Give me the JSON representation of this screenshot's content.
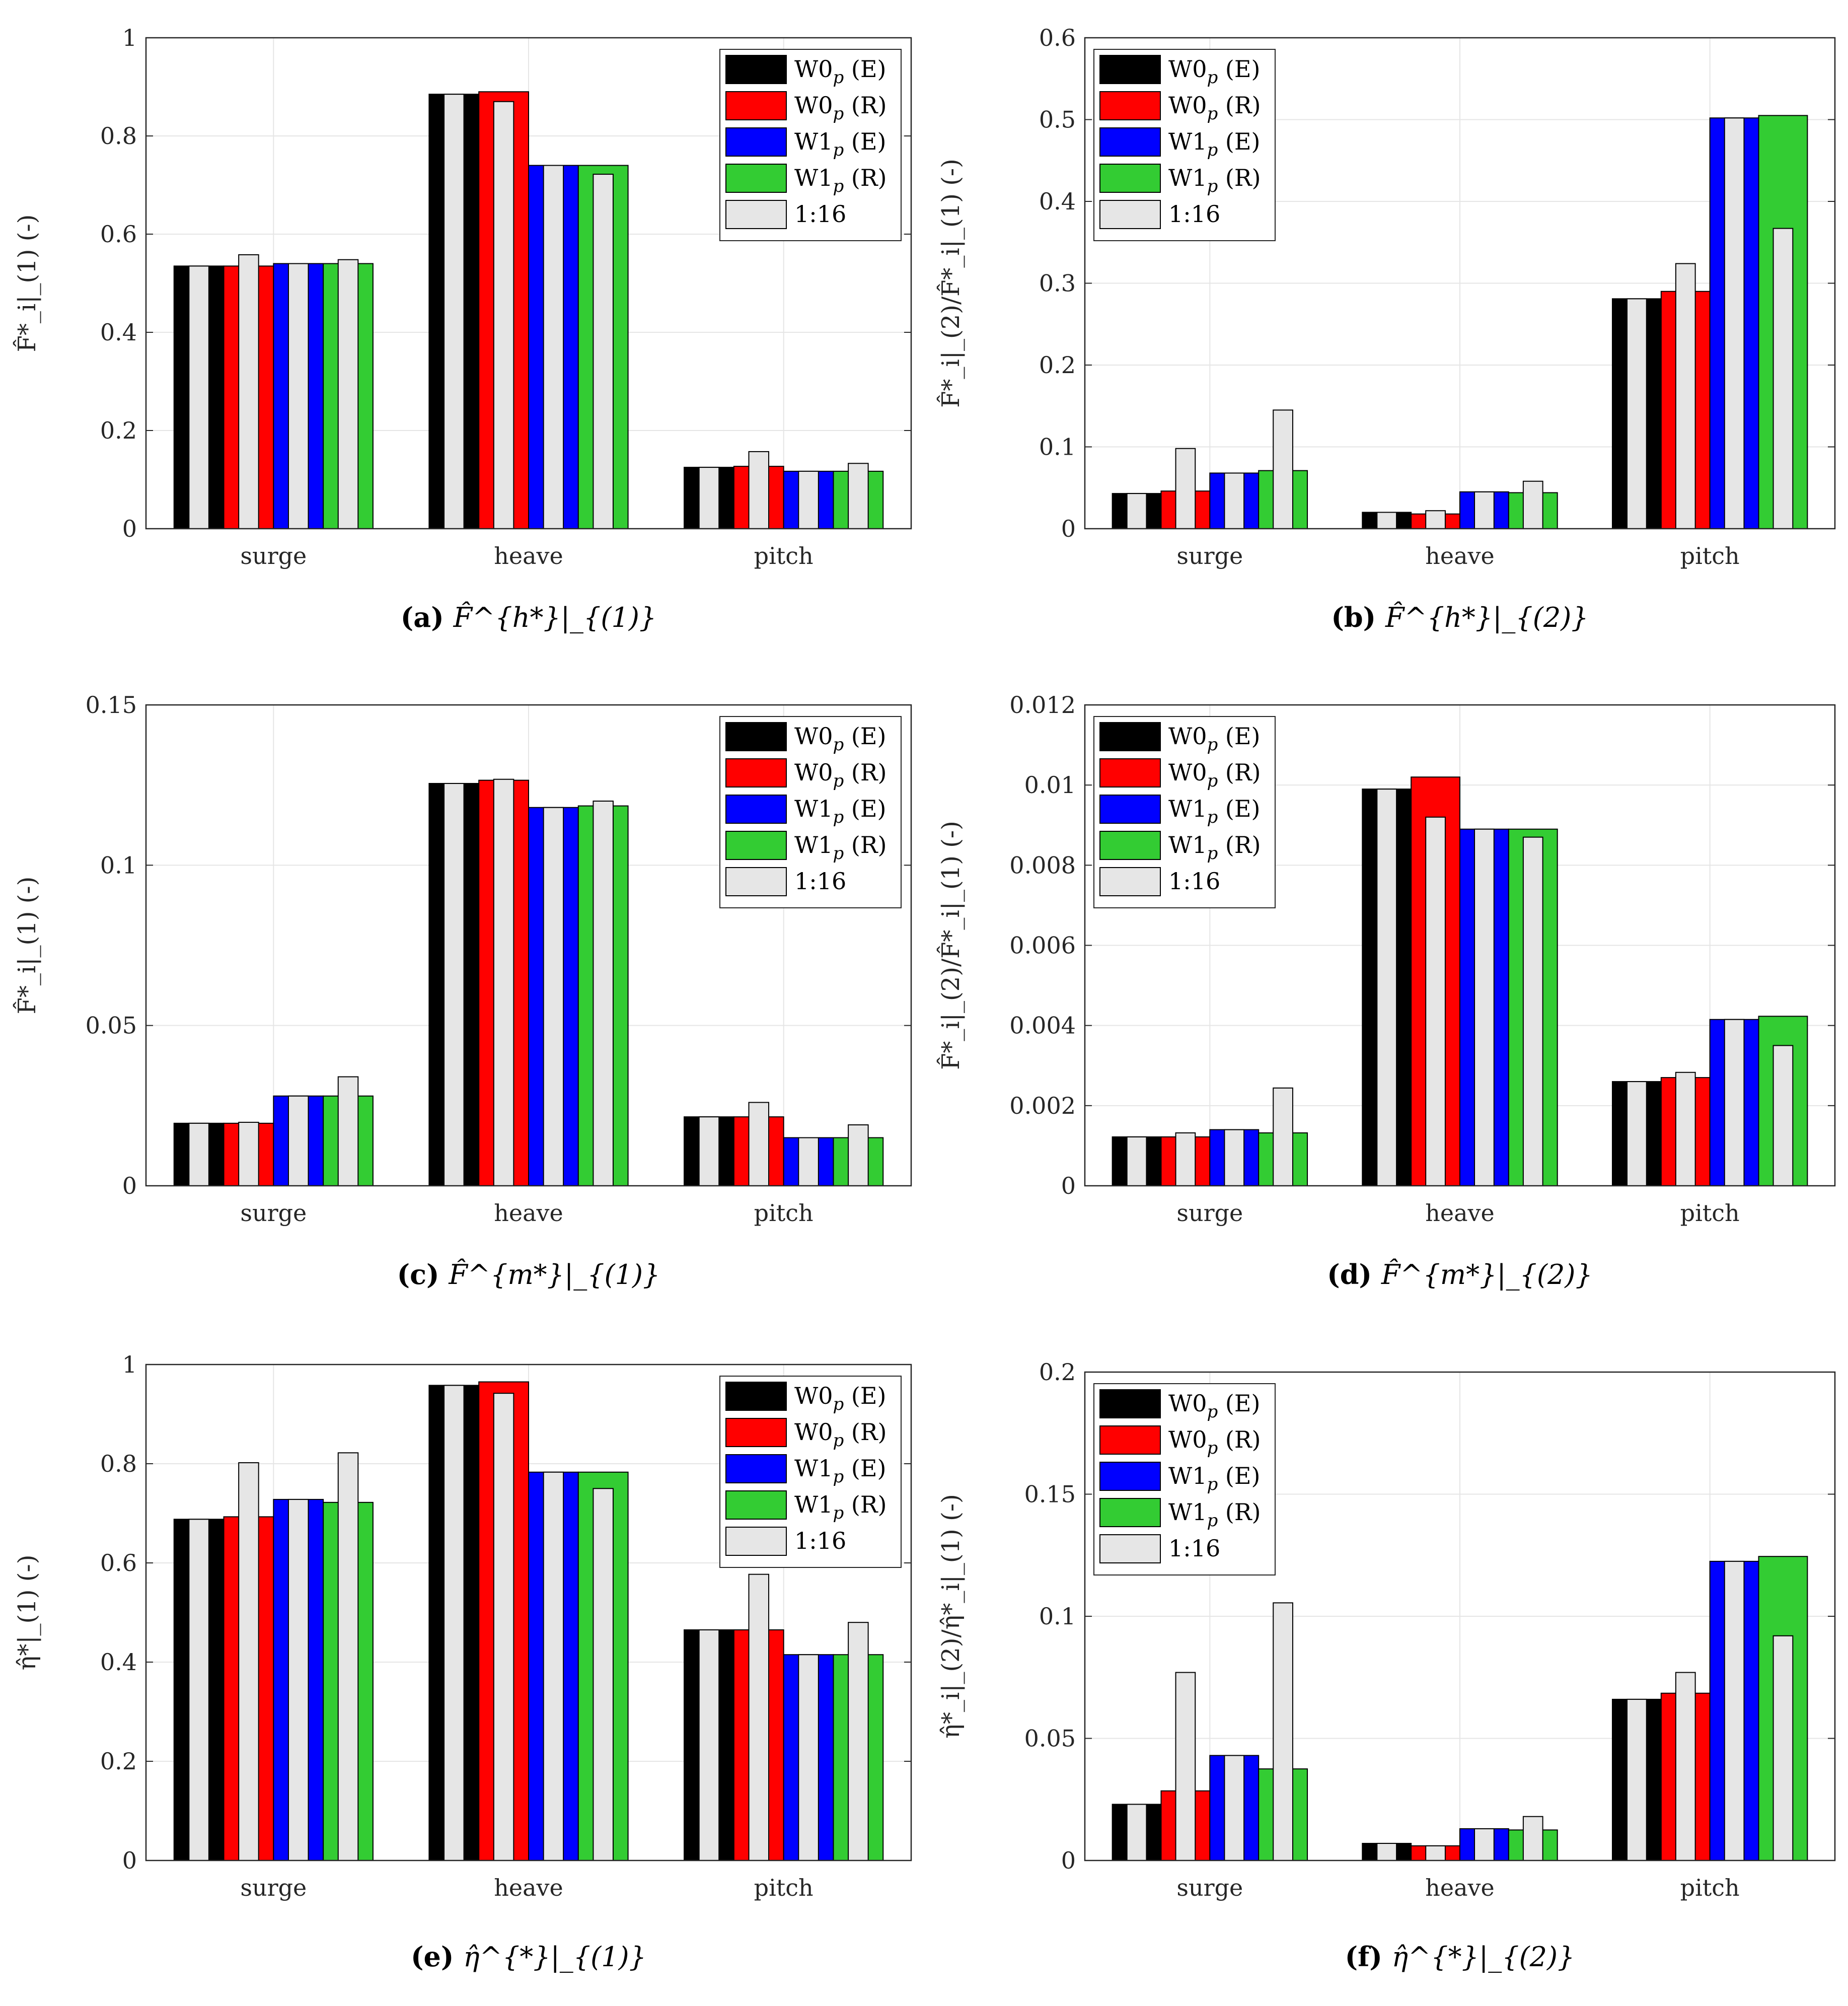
{
  "figure": {
    "legend_entries": [
      {
        "main": "W0",
        "sub": "p",
        "tag": " (E)",
        "color": "#000000"
      },
      {
        "main": "W0",
        "sub": "p",
        "tag": " (R)",
        "color": "#ff0000"
      },
      {
        "main": "W1",
        "sub": "p",
        "tag": " (E)",
        "color": "#0000ff"
      },
      {
        "main": "W1",
        "sub": "p",
        "tag": " (R)",
        "color": "#33cc33"
      },
      {
        "main": "1:16",
        "sub": "",
        "tag": "",
        "color": "#e6e6e6"
      }
    ]
  },
  "chart_data": [
    {
      "type": "bar",
      "panel": "a",
      "caption_letter": "(a)",
      "caption_expr": "F̂^{h*}|_{(1)}",
      "ylabel": "F̂*_i|_(1) (-)",
      "categories": [
        "surge",
        "heave",
        "pitch"
      ],
      "ylim": [
        0,
        1
      ],
      "yticks": [
        0,
        0.2,
        0.4,
        0.6,
        0.8,
        1
      ],
      "ytick_labels": [
        "0",
        "0.2",
        "0.4",
        "0.6",
        "0.8",
        "1"
      ],
      "series": [
        {
          "name": "W0p (E)",
          "values": [
            0.535,
            0.885,
            0.125
          ]
        },
        {
          "name": "W0p (R)",
          "values": [
            0.535,
            0.89,
            0.127
          ]
        },
        {
          "name": "W1p (E)",
          "values": [
            0.54,
            0.74,
            0.117
          ]
        },
        {
          "name": "W1p (R)",
          "values": [
            0.54,
            0.74,
            0.117
          ]
        },
        {
          "name": "1:16",
          "values": [
            [
              0.535,
              0.558,
              0.54,
              0.548
            ],
            [
              0.885,
              0.87,
              0.74,
              0.722
            ],
            [
              0.125,
              0.157,
              0.117,
              0.133
            ]
          ]
        }
      ]
    },
    {
      "type": "bar",
      "panel": "b",
      "caption_letter": "(b)",
      "caption_expr": "F̂^{h*}|_{(2)}",
      "ylabel": "F̂*_i|_(2)/F̂*_i|_(1) (-)",
      "categories": [
        "surge",
        "heave",
        "pitch"
      ],
      "ylim": [
        0,
        0.6
      ],
      "yticks": [
        0,
        0.1,
        0.2,
        0.3,
        0.4,
        0.5,
        0.6
      ],
      "ytick_labels": [
        "0",
        "0.1",
        "0.2",
        "0.3",
        "0.4",
        "0.5",
        "0.6"
      ],
      "series": [
        {
          "name": "W0p (E)",
          "values": [
            0.043,
            0.02,
            0.281
          ]
        },
        {
          "name": "W0p (R)",
          "values": [
            0.046,
            0.018,
            0.29
          ]
        },
        {
          "name": "W1p (E)",
          "values": [
            0.068,
            0.045,
            0.502
          ]
        },
        {
          "name": "W1p (R)",
          "values": [
            0.071,
            0.044,
            0.505
          ]
        },
        {
          "name": "1:16",
          "values": [
            [
              0.043,
              0.098,
              0.068,
              0.145
            ],
            [
              0.02,
              0.022,
              0.045,
              0.058
            ],
            [
              0.281,
              0.324,
              0.502,
              0.367
            ]
          ]
        }
      ]
    },
    {
      "type": "bar",
      "panel": "c",
      "caption_letter": "(c)",
      "caption_expr": "F̂^{m*}|_{(1)}",
      "ylabel": "F̂*_i|_(1) (-)",
      "categories": [
        "surge",
        "heave",
        "pitch"
      ],
      "ylim": [
        0,
        0.15
      ],
      "yticks": [
        0,
        0.05,
        0.1,
        0.15
      ],
      "ytick_labels": [
        "0",
        "0.05",
        "0.1",
        "0.15"
      ],
      "series": [
        {
          "name": "W0p (E)",
          "values": [
            0.0195,
            0.1255,
            0.0215
          ]
        },
        {
          "name": "W0p (R)",
          "values": [
            0.0195,
            0.1265,
            0.0215
          ]
        },
        {
          "name": "W1p (E)",
          "values": [
            0.028,
            0.118,
            0.015
          ]
        },
        {
          "name": "W1p (R)",
          "values": [
            0.028,
            0.1185,
            0.015
          ]
        },
        {
          "name": "1:16",
          "values": [
            [
              0.0195,
              0.0198,
              0.028,
              0.034
            ],
            [
              0.1255,
              0.1268,
              0.118,
              0.12
            ],
            [
              0.0215,
              0.026,
              0.015,
              0.019
            ]
          ]
        }
      ]
    },
    {
      "type": "bar",
      "panel": "d",
      "caption_letter": "(d)",
      "caption_expr": "F̂^{m*}|_{(2)}",
      "ylabel": "F̂*_i|_(2)/F̂*_i|_(1) (-)",
      "categories": [
        "surge",
        "heave",
        "pitch"
      ],
      "ylim": [
        0,
        0.012
      ],
      "yticks": [
        0,
        0.002,
        0.004,
        0.006,
        0.008,
        0.01,
        0.012
      ],
      "ytick_labels": [
        "0",
        "0.002",
        "0.004",
        "0.006",
        "0.008",
        "0.01",
        "0.012"
      ],
      "series": [
        {
          "name": "W0p (E)",
          "values": [
            0.00122,
            0.0099,
            0.0026
          ]
        },
        {
          "name": "W0p (R)",
          "values": [
            0.00122,
            0.0102,
            0.0027
          ]
        },
        {
          "name": "W1p (E)",
          "values": [
            0.0014,
            0.0089,
            0.00415
          ]
        },
        {
          "name": "W1p (R)",
          "values": [
            0.00132,
            0.0089,
            0.00423
          ]
        },
        {
          "name": "1:16",
          "values": [
            [
              0.00122,
              0.00132,
              0.0014,
              0.00244
            ],
            [
              0.0099,
              0.0092,
              0.0089,
              0.0087
            ],
            [
              0.0026,
              0.00283,
              0.00415,
              0.0035
            ]
          ]
        }
      ]
    },
    {
      "type": "bar",
      "panel": "e",
      "caption_letter": "(e)",
      "caption_expr": "η̂^{*}|_{(1)}",
      "ylabel": "η̂*|_(1) (-)",
      "categories": [
        "surge",
        "heave",
        "pitch"
      ],
      "ylim": [
        0,
        1
      ],
      "yticks": [
        0,
        0.2,
        0.4,
        0.6,
        0.8,
        1
      ],
      "ytick_labels": [
        "0",
        "0.2",
        "0.4",
        "0.6",
        "0.8",
        "1"
      ],
      "series": [
        {
          "name": "W0p (E)",
          "values": [
            0.688,
            0.958,
            0.465
          ]
        },
        {
          "name": "W0p (R)",
          "values": [
            0.693,
            0.965,
            0.465
          ]
        },
        {
          "name": "W1p (E)",
          "values": [
            0.728,
            0.783,
            0.415
          ]
        },
        {
          "name": "W1p (R)",
          "values": [
            0.722,
            0.783,
            0.415
          ]
        },
        {
          "name": "1:16",
          "values": [
            [
              0.688,
              0.802,
              0.728,
              0.822
            ],
            [
              0.958,
              0.942,
              0.783,
              0.75
            ],
            [
              0.465,
              0.577,
              0.415,
              0.48
            ]
          ]
        }
      ]
    },
    {
      "type": "bar",
      "panel": "f",
      "caption_letter": "(f)",
      "caption_expr": "η̂^{*}|_{(2)}",
      "ylabel": "η̂*_i|_(2)/η̂*_i|_(1) (-)",
      "categories": [
        "surge",
        "heave",
        "pitch"
      ],
      "ylim": [
        0,
        0.2
      ],
      "yticks": [
        0,
        0.05,
        0.1,
        0.15,
        0.2
      ],
      "ytick_labels": [
        "0",
        "0.05",
        "0.1",
        "0.15",
        "0.2"
      ],
      "series": [
        {
          "name": "W0p (E)",
          "values": [
            0.023,
            0.007,
            0.066
          ]
        },
        {
          "name": "W0p (R)",
          "values": [
            0.0285,
            0.006,
            0.0685
          ]
        },
        {
          "name": "W1p (E)",
          "values": [
            0.043,
            0.013,
            0.1225
          ]
        },
        {
          "name": "W1p (R)",
          "values": [
            0.0375,
            0.0125,
            0.1245
          ]
        },
        {
          "name": "1:16",
          "values": [
            [
              0.023,
              0.077,
              0.043,
              0.1055
            ],
            [
              0.007,
              0.006,
              0.013,
              0.018
            ],
            [
              0.066,
              0.077,
              0.1225,
              0.092
            ]
          ]
        }
      ]
    }
  ]
}
